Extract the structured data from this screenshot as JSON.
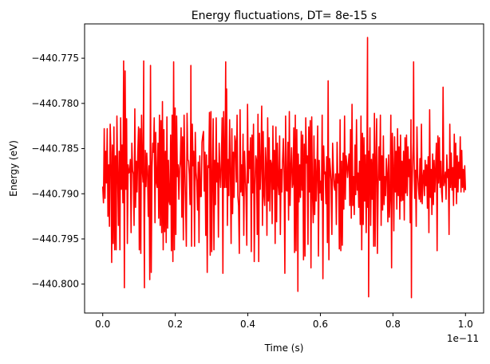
{
  "chart_data": {
    "type": "line",
    "title": "Energy fluctuations, DT= 8e-15 s",
    "xlabel": "Time (s)",
    "ylabel": "Energy (eV)",
    "x_offset_text": "1e−11",
    "x_scale": 1e-11,
    "xlim": [
      -0.05,
      1.05
    ],
    "ylim": [
      -440.8032,
      -440.7712
    ],
    "x_ticks": [
      0.0,
      0.2,
      0.4,
      0.6,
      0.8,
      1.0
    ],
    "x_tick_labels": [
      "0.0",
      "0.2",
      "0.4",
      "0.6",
      "0.8",
      "1.0"
    ],
    "y_ticks": [
      -440.8,
      -440.795,
      -440.79,
      -440.785,
      -440.78,
      -440.775
    ],
    "y_tick_labels": [
      "−440.800",
      "−440.795",
      "−440.790",
      "−440.785",
      "−440.780",
      "−440.775"
    ],
    "grid": false,
    "legend": false,
    "series": [
      {
        "color": "#ff0000",
        "x_start": 0.0,
        "x_end": 1.0,
        "values": [
          -440.7892,
          -440.791,
          -440.7828,
          -440.7905,
          -440.7853,
          -440.7888,
          -440.7828,
          -440.7925,
          -440.7868,
          -440.7936,
          -440.7823,
          -440.7855,
          -440.7976,
          -440.7846,
          -440.7955,
          -440.7826,
          -440.7962,
          -440.7858,
          -440.7962,
          -440.7814,
          -440.7876,
          -440.7935,
          -440.7853,
          -440.7962,
          -440.7816,
          -440.7895,
          -440.7846,
          -440.791,
          -440.7753,
          -440.8004,
          -440.7764,
          -440.7895,
          -440.7817,
          -440.7955,
          -440.7868,
          -440.7877,
          -440.7876,
          -440.7862,
          -440.7943,
          -440.7844,
          -440.7874,
          -440.7878,
          -440.7935,
          -440.7806,
          -440.7915,
          -440.7864,
          -440.7898,
          -440.7854,
          -440.7826,
          -440.7962,
          -440.7828,
          -440.7966,
          -440.7813,
          -440.7873,
          -440.7887,
          -440.7875,
          -440.7936,
          -440.7852,
          -440.7892,
          -440.7855,
          -440.7875,
          -440.7925,
          -440.7869,
          -440.7995,
          -440.7758,
          -440.7987,
          -440.7871,
          -440.7844,
          -440.7854,
          -440.7816,
          -440.7932,
          -440.7832,
          -440.7887,
          -440.7893,
          -440.7844,
          -440.7927,
          -440.7813,
          -440.7935,
          -440.7819,
          -440.7943,
          -440.7798,
          -440.7962,
          -440.7829,
          -440.7942,
          -440.7853,
          -440.7954,
          -440.7815,
          -440.7938,
          -440.7863,
          -440.7908,
          -440.7912,
          -440.7835,
          -440.7963,
          -440.7813,
          -440.7975,
          -440.7754,
          -440.7962,
          -440.7805,
          -440.7945,
          -440.7814,
          -440.7881,
          -440.7868,
          -440.7906,
          -440.7873,
          -440.7863,
          -440.7827,
          -440.7926,
          -440.7837,
          -440.7951,
          -440.7813,
          -440.7872,
          -440.7911,
          -440.7958,
          -440.7811,
          -440.7862,
          -440.7864,
          -440.7879,
          -440.7912,
          -440.7813,
          -440.7958,
          -440.7823,
          -440.7869,
          -440.7853,
          -440.7958,
          -440.7832,
          -440.7876,
          -440.7886,
          -440.7918,
          -440.7865,
          -440.7954,
          -440.7858,
          -440.7903,
          -440.7903,
          -440.7843,
          -440.7836,
          -440.7831,
          -440.7897,
          -440.7854,
          -440.7946,
          -440.7857,
          -440.7987,
          -440.7869,
          -440.7871,
          -440.781,
          -440.7968,
          -440.7809,
          -440.7964,
          -440.7884,
          -440.7817,
          -440.7962,
          -440.7863,
          -440.7912,
          -440.7816,
          -440.7887,
          -440.7866,
          -440.7948,
          -440.7844,
          -440.7876,
          -440.7893,
          -440.7862,
          -440.7816,
          -440.7988,
          -440.7809,
          -440.7893,
          -440.7854,
          -440.7893,
          -440.7784,
          -440.7935,
          -440.7862,
          -440.7902,
          -440.7818,
          -440.7876,
          -440.7955,
          -440.7828,
          -440.7922,
          -440.7854,
          -440.7904,
          -440.7836,
          -440.7843,
          -440.7887,
          -440.7813,
          -440.7902,
          -440.7913,
          -440.7966,
          -440.7807,
          -440.7898,
          -440.7868,
          -440.7902,
          -440.7834,
          -440.7946,
          -440.7853,
          -440.7878,
          -440.7903,
          -440.7957,
          -440.7801,
          -440.7888,
          -440.7853,
          -440.7872,
          -440.7838,
          -440.7964,
          -440.7835,
          -440.7899,
          -440.7823,
          -440.7975,
          -440.7891,
          -440.7858,
          -440.7863,
          -440.7945,
          -440.7812,
          -440.7975,
          -440.7833,
          -440.7895,
          -440.7867,
          -440.7803,
          -440.7935,
          -440.7831,
          -440.7902,
          -440.7913,
          -440.7849,
          -440.7868,
          -440.7946,
          -440.7816,
          -440.7908,
          -440.7838,
          -440.7919,
          -440.7863,
          -440.7867,
          -440.7933,
          -440.7825,
          -440.7895,
          -440.7852,
          -440.7955,
          -440.7826,
          -440.7931,
          -440.7844,
          -440.7889,
          -440.7901,
          -440.7836,
          -440.7945,
          -440.7873,
          -440.7898,
          -440.7863,
          -440.7839,
          -440.7876,
          -440.7988,
          -440.7814,
          -440.7896,
          -440.7897,
          -440.7843,
          -440.7929,
          -440.7809,
          -440.7913,
          -440.7873,
          -440.7849,
          -440.7893,
          -440.7888,
          -440.7827,
          -440.7965,
          -440.7813,
          -440.7963,
          -440.7829,
          -440.7909,
          -440.7856,
          -440.7909,
          -440.7868,
          -440.7904,
          -440.7831,
          -440.7896,
          -440.7835,
          -440.7973,
          -440.7845,
          -440.7969,
          -440.7816,
          -440.7866,
          -440.7858,
          -440.7956,
          -440.7826,
          -440.7898,
          -440.7819,
          -440.7982,
          -440.7815,
          -440.7898,
          -440.7932,
          -440.7836,
          -440.7923,
          -440.7862,
          -440.7908,
          -440.7876,
          -440.7825,
          -440.7969,
          -440.7863,
          -440.7899,
          -440.7886,
          -440.7907,
          -440.7813,
          -440.7994,
          -440.7847,
          -440.7878,
          -440.7876,
          -440.7911,
          -440.7859,
          -440.7954,
          -440.7775,
          -440.7973,
          -440.7861,
          -440.7873,
          -440.7886,
          -440.7945,
          -440.7844,
          -440.7873,
          -440.7891,
          -440.7896,
          -440.7878,
          -440.7934,
          -440.7843,
          -440.7888,
          -440.7878,
          -440.7961,
          -440.7818,
          -440.7963,
          -440.7864,
          -440.7957,
          -440.7855,
          -440.7917,
          -440.7814,
          -440.7906,
          -440.7858,
          -440.7868,
          -440.7882,
          -440.7868,
          -440.7856,
          -440.7913,
          -440.7829,
          -440.7927,
          -440.7801,
          -440.7913,
          -440.7881,
          -440.7923,
          -440.7846,
          -440.7901,
          -440.7818,
          -440.7896,
          -440.7877,
          -440.7915,
          -440.7864,
          -440.7934,
          -440.7814,
          -440.7962,
          -440.7833,
          -440.7934,
          -440.7838,
          -440.7908,
          -440.7857,
          -440.7943,
          -440.7853,
          -440.7915,
          -440.7853,
          -440.7895,
          -440.7827,
          -440.7935,
          -440.7862,
          -440.7906,
          -440.7856,
          -440.7958,
          -440.7811,
          -440.7958,
          -440.7862,
          -440.7817,
          -440.7966,
          -440.7891,
          -440.7848,
          -440.7885,
          -440.7813,
          -440.7935,
          -440.7858,
          -440.7918,
          -440.7836,
          -440.7912,
          -440.7881,
          -440.7902,
          -440.7861,
          -440.7877,
          -440.7931,
          -440.7857,
          -440.7926,
          -440.7904,
          -440.7813,
          -440.7982,
          -440.7833,
          -440.7871,
          -440.7941,
          -440.7837,
          -440.7898,
          -440.7853,
          -440.7917,
          -440.7828,
          -440.7902,
          -440.7848,
          -440.7928,
          -440.7835,
          -440.7908,
          -440.7864,
          -440.7907,
          -440.7853,
          -440.7929,
          -440.7838,
          -440.7899,
          -440.7835,
          -440.7902,
          -440.7848,
          -440.7881,
          -440.7862,
          -440.7932,
          -440.7818,
          -440.7907,
          -440.7872,
          -440.7843,
          -440.7852,
          -440.7905,
          -440.7874,
          -440.7936,
          -440.7826,
          -440.7878,
          -440.7894,
          -440.7906,
          -440.7861,
          -440.7909,
          -440.7823,
          -440.7911,
          -440.7883,
          -440.7874,
          -440.7902,
          -440.7863,
          -440.7891,
          -440.7868,
          -440.7916,
          -440.7859,
          -440.7943,
          -440.7807,
          -440.7904,
          -440.7873,
          -440.7923,
          -440.7856,
          -440.7912,
          -440.7863,
          -440.7898,
          -440.7871,
          -440.7844,
          -440.7963,
          -440.7836,
          -440.7888,
          -440.7838,
          -440.7893,
          -440.7864,
          -440.7898,
          -440.7909,
          -440.7782,
          -440.7891,
          -440.7885,
          -440.7876,
          -440.7906,
          -440.7857,
          -440.7882,
          -440.7873,
          -440.7945,
          -440.7823,
          -440.7893,
          -440.7855,
          -440.7896,
          -440.7871,
          -440.7913,
          -440.7834,
          -440.7893,
          -440.7844,
          -440.7911,
          -440.7858,
          -440.7898,
          -440.7865,
          -440.7883,
          -440.7837,
          -440.7898,
          -440.7852,
          -440.7893,
          -440.7873,
          -440.7898,
          -440.7869,
          -440.7896
        ]
      }
    ],
    "annotations": [
      {
        "x": 0.113,
        "y": -440.7753
      },
      {
        "x": 0.115,
        "y": -440.8004
      },
      {
        "x": 0.243,
        "y": -440.7758
      },
      {
        "x": 0.339,
        "y": -440.7754
      },
      {
        "x": 0.538,
        "y": -440.8008
      },
      {
        "x": 0.73,
        "y": -440.7727
      },
      {
        "x": 0.733,
        "y": -440.8014
      },
      {
        "x": 0.851,
        "y": -440.8015
      },
      {
        "x": 0.857,
        "y": -440.7754
      }
    ]
  }
}
